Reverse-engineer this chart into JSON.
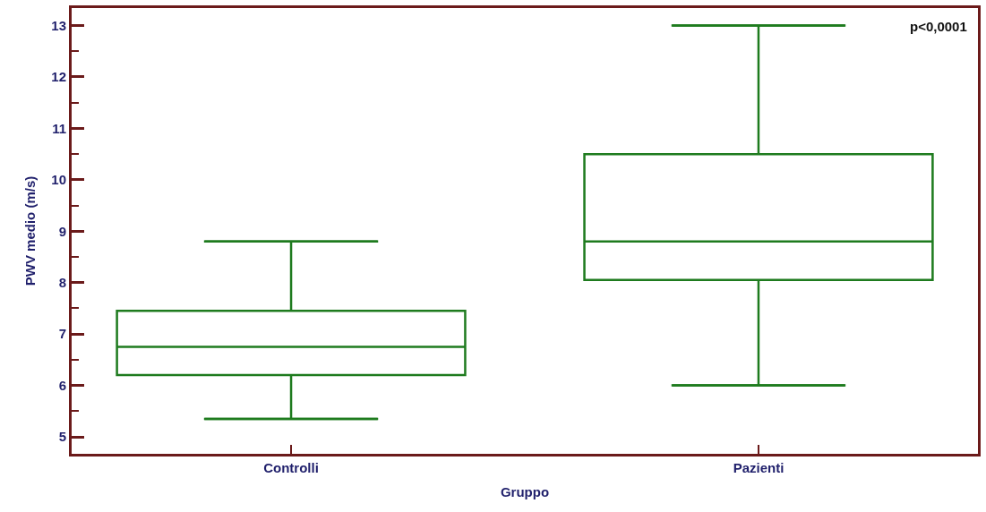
{
  "chart_data": {
    "type": "box",
    "xlabel": "Gruppo",
    "ylabel": "PWV medio (m/s)",
    "categories": [
      "Controlli",
      "Pazienti"
    ],
    "boxes": [
      {
        "low": 5.35,
        "q1": 6.2,
        "median": 6.75,
        "q3": 7.45,
        "high": 8.8
      },
      {
        "low": 6.0,
        "q1": 8.05,
        "median": 8.8,
        "q3": 10.5,
        "high": 13.0
      }
    ],
    "color": "#1e7b1e",
    "ylim": [
      4.67,
      13.34
    ],
    "yticks": [
      5,
      {
        "value": 5.5,
        "label": null
      },
      6,
      {
        "value": 6.5,
        "label": null
      },
      7,
      {
        "value": 7.5,
        "label": null
      },
      8,
      {
        "value": 8.5,
        "label": null
      },
      9,
      {
        "value": 9.5,
        "label": null
      },
      10,
      {
        "value": 10.5,
        "label": null
      },
      11,
      {
        "value": 11.5,
        "label": null
      },
      12,
      {
        "value": 12.5,
        "label": null
      },
      13
    ],
    "legend": false,
    "annotations": [
      "p<0,0001"
    ]
  }
}
